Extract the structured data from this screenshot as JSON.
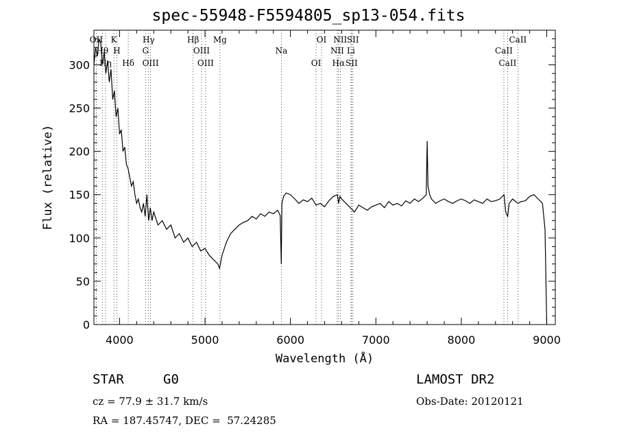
{
  "chart_data": {
    "type": "line",
    "title": "spec-55948-F5594805_sp13-054.fits",
    "xlabel": "Wavelength (Å)",
    "ylabel": "Flux (relative)",
    "xlim": [
      3700,
      9100
    ],
    "ylim": [
      0,
      340
    ],
    "xticks": [
      4000,
      5000,
      6000,
      7000,
      8000,
      9000
    ],
    "yticks": [
      0,
      50,
      100,
      150,
      200,
      250,
      300
    ],
    "grid": false,
    "series": [
      {
        "x": [
          3700,
          3720,
          3740,
          3760,
          3780,
          3800,
          3820,
          3840,
          3860,
          3880,
          3900,
          3920,
          3940,
          3960,
          3980,
          4000,
          4020,
          4040,
          4060,
          4080,
          4100,
          4120,
          4140,
          4160,
          4180,
          4200,
          4220,
          4240,
          4260,
          4280,
          4300,
          4320,
          4340,
          4360,
          4380,
          4400,
          4450,
          4500,
          4550,
          4600,
          4650,
          4700,
          4750,
          4800,
          4850,
          4900,
          4950,
          5000,
          5050,
          5100,
          5150,
          5170,
          5200,
          5250,
          5300,
          5350,
          5400,
          5450,
          5500,
          5550,
          5600,
          5650,
          5700,
          5750,
          5800,
          5850,
          5880,
          5893,
          5900,
          5920,
          5950,
          6000,
          6050,
          6100,
          6150,
          6200,
          6250,
          6300,
          6350,
          6400,
          6450,
          6500,
          6550,
          6563,
          6580,
          6600,
          6650,
          6700,
          6750,
          6800,
          6850,
          6900,
          6950,
          7000,
          7050,
          7100,
          7150,
          7200,
          7250,
          7300,
          7350,
          7400,
          7450,
          7500,
          7550,
          7590,
          7600,
          7610,
          7630,
          7650,
          7700,
          7750,
          7800,
          7850,
          7900,
          7950,
          8000,
          8050,
          8100,
          8150,
          8200,
          8250,
          8300,
          8350,
          8400,
          8450,
          8500,
          8520,
          8542,
          8560,
          8600,
          8662,
          8700,
          8750,
          8800,
          8850,
          8900,
          8950,
          8980,
          9000
        ],
        "y": [
          300,
          320,
          310,
          330,
          325,
          300,
          315,
          290,
          305,
          280,
          295,
          260,
          270,
          240,
          250,
          220,
          225,
          200,
          205,
          185,
          180,
          170,
          160,
          165,
          150,
          140,
          145,
          135,
          130,
          140,
          125,
          150,
          120,
          135,
          120,
          130,
          115,
          120,
          110,
          115,
          100,
          105,
          95,
          100,
          90,
          95,
          85,
          88,
          80,
          75,
          70,
          65,
          80,
          95,
          105,
          110,
          115,
          118,
          120,
          125,
          122,
          128,
          125,
          130,
          128,
          132,
          126,
          70,
          140,
          148,
          152,
          150,
          145,
          140,
          144,
          142,
          146,
          138,
          140,
          136,
          143,
          148,
          150,
          140,
          148,
          145,
          140,
          135,
          130,
          138,
          135,
          132,
          136,
          138,
          140,
          135,
          142,
          138,
          140,
          137,
          143,
          140,
          145,
          142,
          146,
          150,
          212,
          160,
          150,
          145,
          140,
          143,
          145,
          142,
          140,
          143,
          145,
          143,
          140,
          144,
          142,
          140,
          145,
          142,
          143,
          145,
          150,
          130,
          125,
          140,
          145,
          140,
          142,
          143,
          148,
          150,
          145,
          140,
          110,
          0
        ]
      }
    ],
    "line_labels": [
      {
        "text": "OII",
        "x": 3727
      },
      {
        "text": "Hθ",
        "x": 3798
      },
      {
        "text": "Hη",
        "x": 3836
      },
      {
        "text": "K",
        "x": 3934
      },
      {
        "text": "H",
        "x": 3969
      },
      {
        "text": "Hδ",
        "x": 4102
      },
      {
        "text": "Hγ",
        "x": 4340
      },
      {
        "text": "G",
        "x": 4304
      },
      {
        "text": "OIII",
        "x": 4363
      },
      {
        "text": "Hβ",
        "x": 4861
      },
      {
        "text": "OIII",
        "x": 4959
      },
      {
        "text": "OIII",
        "x": 5007
      },
      {
        "text": "Mg",
        "x": 5175
      },
      {
        "text": "Na",
        "x": 5894
      },
      {
        "text": "OI",
        "x": 6300
      },
      {
        "text": "OI",
        "x": 6364
      },
      {
        "text": "NII",
        "x": 6548
      },
      {
        "text": "Hα",
        "x": 6563
      },
      {
        "text": "NII",
        "x": 6583
      },
      {
        "text": "Li",
        "x": 6708
      },
      {
        "text": "SII",
        "x": 6716
      },
      {
        "text": "SII",
        "x": 6731
      },
      {
        "text": "CaII",
        "x": 8498
      },
      {
        "text": "CaII",
        "x": 8542
      },
      {
        "text": "CaII",
        "x": 8662
      }
    ]
  },
  "footer": {
    "class_label": "STAR",
    "subclass": "G0",
    "survey": "LAMOST DR2",
    "cz": "cz = 77.9 ± 31.7 km/s",
    "obs_date": "Obs-Date: 20120121",
    "radec": "RA = 187.45747, DEC =  57.24285"
  }
}
